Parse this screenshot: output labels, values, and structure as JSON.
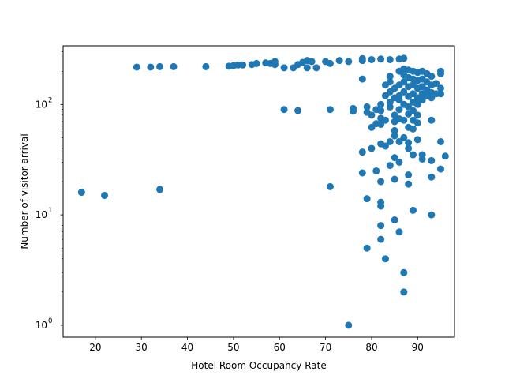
{
  "chart_data": {
    "type": "scatter",
    "xlabel": "Hotel Room Occupancy Rate",
    "ylabel": "Number of visitor arrival",
    "xlim": [
      13,
      98
    ],
    "ylim": [
      0.78,
      340
    ],
    "yscale": "log",
    "grid": false,
    "marker_color": "#1f77b4",
    "x_ticks": [
      {
        "value": 20,
        "label": "20"
      },
      {
        "value": 30,
        "label": "30"
      },
      {
        "value": 40,
        "label": "40"
      },
      {
        "value": 50,
        "label": "50"
      },
      {
        "value": 60,
        "label": "60"
      },
      {
        "value": 70,
        "label": "70"
      },
      {
        "value": 80,
        "label": "80"
      },
      {
        "value": 90,
        "label": "90"
      }
    ],
    "y_ticks": [
      {
        "value": 1,
        "base": "10",
        "exp": "0"
      },
      {
        "value": 10,
        "base": "10",
        "exp": "1"
      },
      {
        "value": 100,
        "base": "10",
        "exp": "2"
      }
    ],
    "series": [
      {
        "points": [
          [
            17,
            16
          ],
          [
            22,
            15
          ],
          [
            34,
            17
          ],
          [
            71,
            18
          ],
          [
            75,
            1
          ],
          [
            29,
            218
          ],
          [
            32,
            218
          ],
          [
            34,
            220
          ],
          [
            37,
            220
          ],
          [
            44,
            220
          ],
          [
            49,
            222
          ],
          [
            50,
            225
          ],
          [
            51,
            228
          ],
          [
            52,
            228
          ],
          [
            54,
            230
          ],
          [
            55,
            235
          ],
          [
            57,
            238
          ],
          [
            58,
            235
          ],
          [
            59,
            230
          ],
          [
            59,
            245
          ],
          [
            61,
            215
          ],
          [
            63,
            215
          ],
          [
            64,
            230
          ],
          [
            65,
            240
          ],
          [
            66,
            250
          ],
          [
            67,
            245
          ],
          [
            66,
            215
          ],
          [
            68,
            215
          ],
          [
            70,
            245
          ],
          [
            71,
            235
          ],
          [
            73,
            250
          ],
          [
            75,
            245
          ],
          [
            78,
            250
          ],
          [
            78,
            260
          ],
          [
            80,
            255
          ],
          [
            82,
            258
          ],
          [
            84,
            255
          ],
          [
            86,
            258
          ],
          [
            87,
            262
          ],
          [
            61,
            90
          ],
          [
            64,
            88
          ],
          [
            71,
            90
          ],
          [
            76,
            92
          ],
          [
            76,
            87
          ],
          [
            78,
            170
          ],
          [
            79,
            95
          ],
          [
            79,
            85
          ],
          [
            80,
            80
          ],
          [
            80,
            62
          ],
          [
            81,
            67
          ],
          [
            81,
            90
          ],
          [
            82,
            100
          ],
          [
            82,
            88
          ],
          [
            82,
            75
          ],
          [
            82,
            66
          ],
          [
            83,
            72
          ],
          [
            83,
            120
          ],
          [
            83,
            150
          ],
          [
            84,
            180
          ],
          [
            84,
            160
          ],
          [
            84,
            130
          ],
          [
            84,
            105
          ],
          [
            84,
            95
          ],
          [
            85,
            140
          ],
          [
            85,
            115
          ],
          [
            85,
            80
          ],
          [
            85,
            70
          ],
          [
            85,
            58
          ],
          [
            85,
            52
          ],
          [
            86,
            200
          ],
          [
            86,
            150
          ],
          [
            86,
            120
          ],
          [
            86,
            110
          ],
          [
            86,
            90
          ],
          [
            86,
            74
          ],
          [
            87,
            210
          ],
          [
            87,
            185
          ],
          [
            87,
            160
          ],
          [
            87,
            130
          ],
          [
            87,
            100
          ],
          [
            87,
            72
          ],
          [
            87,
            50
          ],
          [
            88,
            205
          ],
          [
            88,
            175
          ],
          [
            88,
            145
          ],
          [
            88,
            118
          ],
          [
            88,
            95
          ],
          [
            88,
            82
          ],
          [
            88,
            62
          ],
          [
            89,
            200
          ],
          [
            89,
            170
          ],
          [
            89,
            150
          ],
          [
            89,
            125
          ],
          [
            89,
            105
          ],
          [
            89,
            88
          ],
          [
            89,
            72
          ],
          [
            89,
            60
          ],
          [
            90,
            195
          ],
          [
            90,
            165
          ],
          [
            90,
            140
          ],
          [
            90,
            115
          ],
          [
            90,
            100
          ],
          [
            90,
            80
          ],
          [
            90,
            68
          ],
          [
            91,
            200
          ],
          [
            91,
            170
          ],
          [
            91,
            145
          ],
          [
            91,
            125
          ],
          [
            91,
            110
          ],
          [
            92,
            190
          ],
          [
            92,
            160
          ],
          [
            92,
            135
          ],
          [
            92,
            120
          ],
          [
            93,
            180
          ],
          [
            93,
            150
          ],
          [
            93,
            128
          ],
          [
            93,
            115
          ],
          [
            93,
            72
          ],
          [
            94,
            155
          ],
          [
            94,
            125
          ],
          [
            95,
            200
          ],
          [
            95,
            190
          ],
          [
            95,
            140
          ],
          [
            95,
            125
          ],
          [
            78,
            37
          ],
          [
            79,
            14
          ],
          [
            79,
            5
          ],
          [
            80,
            40
          ],
          [
            81,
            25
          ],
          [
            82,
            44
          ],
          [
            82,
            20
          ],
          [
            82,
            13
          ],
          [
            82,
            12
          ],
          [
            82,
            8
          ],
          [
            82,
            6
          ],
          [
            83,
            42
          ],
          [
            83,
            4
          ],
          [
            84,
            28
          ],
          [
            84,
            46
          ],
          [
            85,
            33
          ],
          [
            85,
            21
          ],
          [
            85,
            9
          ],
          [
            86,
            7
          ],
          [
            86,
            46
          ],
          [
            86,
            30
          ],
          [
            87,
            3
          ],
          [
            87,
            2
          ],
          [
            88,
            45
          ],
          [
            88,
            40
          ],
          [
            88,
            23
          ],
          [
            88,
            19
          ],
          [
            89,
            11
          ],
          [
            89,
            35
          ],
          [
            90,
            48
          ],
          [
            91,
            35
          ],
          [
            91,
            32
          ],
          [
            93,
            31
          ],
          [
            93,
            22
          ],
          [
            93,
            10
          ],
          [
            95,
            46
          ],
          [
            95,
            26
          ],
          [
            96,
            34
          ],
          [
            78,
            24
          ]
        ]
      }
    ]
  }
}
